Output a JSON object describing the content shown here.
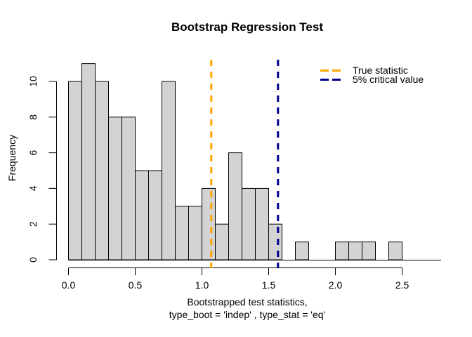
{
  "chart_data": {
    "type": "bar",
    "subtype": "histogram",
    "title": "Bootstrap Regression Test",
    "xlabel": [
      "Bootstrapped test statistics,",
      "type_boot = 'indep' , type_stat = 'eq'"
    ],
    "ylabel": "Frequency",
    "bin_start": 0.0,
    "bin_width": 0.1,
    "counts": [
      10,
      11,
      10,
      8,
      8,
      5,
      5,
      10,
      3,
      3,
      4,
      2,
      6,
      4,
      4,
      2,
      0,
      1,
      0,
      0,
      1,
      1,
      1,
      0,
      1
    ],
    "total_observations": 100,
    "x_ticks": [
      0.0,
      0.5,
      1.0,
      1.5,
      2.0,
      2.5
    ],
    "x_tick_labels": [
      "0.0",
      "0.5",
      "1.0",
      "1.5",
      "2.0",
      "2.5"
    ],
    "y_ticks": [
      0,
      2,
      4,
      6,
      8,
      10
    ],
    "y_tick_labels": [
      "0",
      "2",
      "4",
      "6",
      "8",
      "10"
    ],
    "xlim": [
      0.0,
      2.5
    ],
    "ylim": [
      0,
      11
    ],
    "grid": false,
    "bar_fill": "#d3d3d3",
    "bar_border": "#000000",
    "axis_color": "#000000",
    "vlines": [
      {
        "x": 1.07,
        "color": "#FFA500",
        "style": "dashed",
        "label": "True statistic"
      },
      {
        "x": 1.57,
        "color": "#00008B",
        "style": "dashed",
        "label": "5% critical value"
      }
    ],
    "legend": {
      "position": "top-right",
      "frame": false,
      "items": [
        {
          "label": "True statistic",
          "color": "#FFA500",
          "line_style": "dashed"
        },
        {
          "label": "5% critical value",
          "color": "#00008B",
          "line_style": "dashed"
        }
      ]
    }
  }
}
